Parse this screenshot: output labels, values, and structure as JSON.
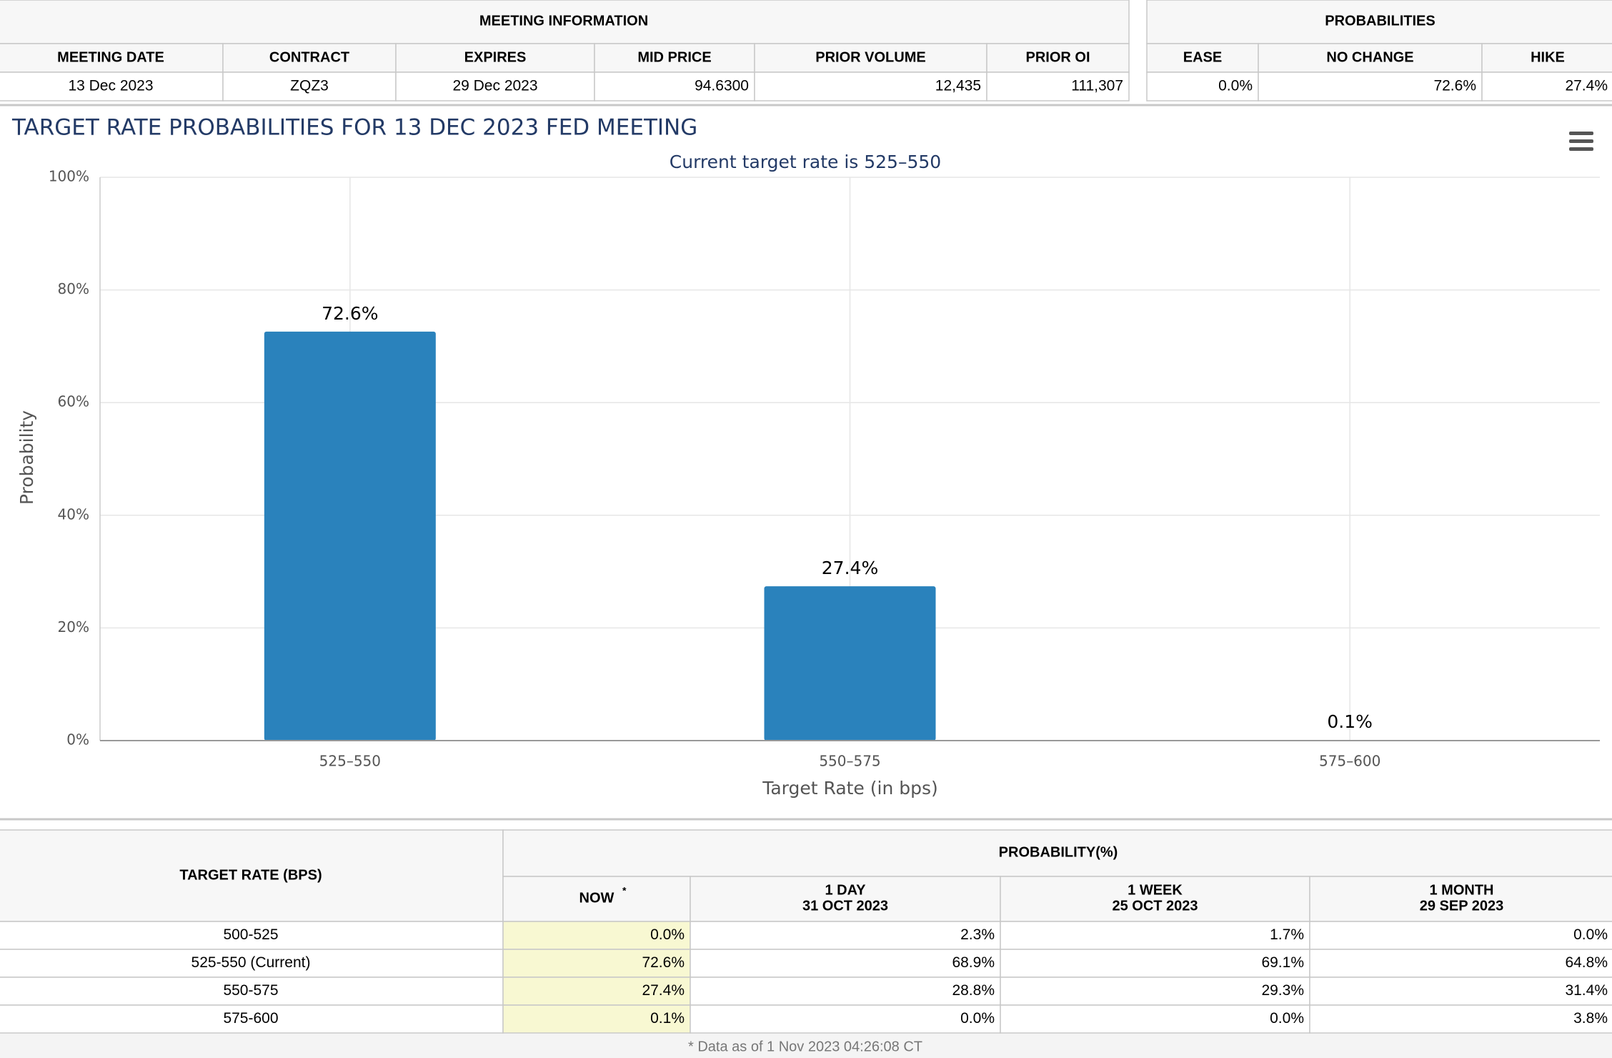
{
  "meeting_info": {
    "title": "MEETING INFORMATION",
    "columns": [
      "MEETING DATE",
      "CONTRACT",
      "EXPIRES",
      "MID PRICE",
      "PRIOR VOLUME",
      "PRIOR OI"
    ],
    "row": [
      "13 Dec 2023",
      "ZQZ3",
      "29 Dec 2023",
      "94.6300",
      "12,435",
      "111,307"
    ]
  },
  "probabilities": {
    "title": "PROBABILITIES",
    "columns": [
      "EASE",
      "NO CHANGE",
      "HIKE"
    ],
    "row": [
      "0.0%",
      "72.6%",
      "27.4%"
    ]
  },
  "chart_data": {
    "type": "bar",
    "title": "TARGET RATE PROBABILITIES FOR 13 DEC 2023 FED MEETING",
    "subtitle": "Current target rate is 525–550",
    "x_label": "Target Rate (in bps)",
    "y_label": "Probability",
    "categories": [
      "525–550",
      "550–575",
      "575–600"
    ],
    "values": [
      72.6,
      27.4,
      0.1
    ],
    "value_labels": [
      "72.6%",
      "27.4%",
      "0.1%"
    ],
    "color": "#2a82bc",
    "ylim": [
      0,
      100
    ],
    "yticks": [
      {
        "value": 0,
        "label": "0%"
      },
      {
        "value": 20,
        "label": "20%"
      },
      {
        "value": 40,
        "label": "40%"
      },
      {
        "value": 60,
        "label": "60%"
      },
      {
        "value": 80,
        "label": "80%"
      },
      {
        "value": 100,
        "label": "100%"
      }
    ],
    "grid": true
  },
  "rate_table": {
    "row_header": "TARGET RATE (BPS)",
    "group_header": "PROBABILITY(%)",
    "columns": [
      [
        "NOW"
      ],
      [
        "1 DAY",
        "31 OCT 2023"
      ],
      [
        "1 WEEK",
        "25 OCT 2023"
      ],
      [
        "1 MONTH",
        "29 SEP 2023"
      ]
    ],
    "now_note": "*",
    "rows": [
      [
        "500-525",
        "0.0%",
        "2.3%",
        "1.7%",
        "0.0%"
      ],
      [
        "525-550 (Current)",
        "72.6%",
        "68.9%",
        "69.1%",
        "64.8%"
      ],
      [
        "550-575",
        "27.4%",
        "28.8%",
        "29.3%",
        "31.4%"
      ],
      [
        "575-600",
        "0.1%",
        "0.0%",
        "0.0%",
        "3.8%"
      ]
    ],
    "footnote": "* Data as of 1 Nov 2023 04:26:08 CT"
  }
}
